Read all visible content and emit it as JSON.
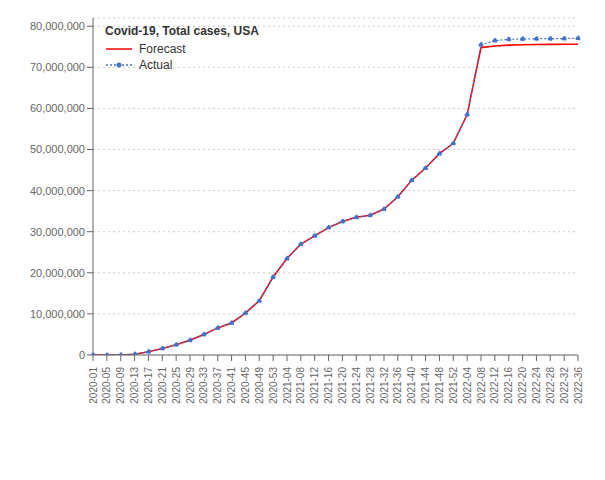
{
  "chart_data": {
    "type": "line",
    "title": "Covid-19, Total cases, USA",
    "categories": [
      "2020-01",
      "2020-05",
      "2020-09",
      "2020-13",
      "2020-17",
      "2020-21",
      "2020-25",
      "2020-29",
      "2020-33",
      "2020-37",
      "2020-41",
      "2020-45",
      "2020-49",
      "2020-53",
      "2021-04",
      "2021-08",
      "2021-12",
      "2021-16",
      "2021-20",
      "2021-24",
      "2021-28",
      "2021-32",
      "2021-36",
      "2021-40",
      "2021-44",
      "2021-48",
      "2021-52",
      "2022-04",
      "2022-08",
      "2022-12",
      "2022-16",
      "2022-20",
      "2022-24",
      "2022-28",
      "2022-32",
      "2022-36"
    ],
    "series": [
      {
        "name": "Forecast",
        "color": "#ff0000",
        "line_style": "solid",
        "values": [
          50,
          300,
          15000,
          200000,
          800000,
          1600000,
          2500000,
          3600000,
          5000000,
          6600000,
          7800000,
          10200000,
          13200000,
          19000000,
          23500000,
          27000000,
          29000000,
          31000000,
          32500000,
          33500000,
          34000000,
          35500000,
          38500000,
          42500000,
          45500000,
          49000000,
          51500000,
          58500000,
          74800000,
          75200000,
          75400000,
          75500000,
          75550000,
          75580000,
          75600000,
          75620000
        ]
      },
      {
        "name": "Actual",
        "color": "#4472c4",
        "line_style": "dotted",
        "marker": "circle",
        "values": [
          50,
          300,
          15000,
          200000,
          800000,
          1600000,
          2500000,
          3600000,
          5000000,
          6600000,
          7800000,
          10200000,
          13200000,
          19000000,
          23500000,
          27000000,
          29000000,
          31000000,
          32500000,
          33500000,
          34000000,
          35500000,
          38500000,
          42500000,
          45500000,
          49000000,
          51500000,
          58500000,
          75500000,
          76500000,
          76800000,
          76900000,
          76950000,
          76980000,
          77000000,
          77100000
        ]
      }
    ],
    "ylim": [
      0,
      82000000
    ],
    "yticks": [
      0,
      {
        "value": 10000000,
        "label": "10,000,000"
      },
      {
        "value": 20000000,
        "label": "20,000,000"
      },
      {
        "value": 30000000,
        "label": "30,000,000"
      },
      {
        "value": 40000000,
        "label": "40,000,000"
      },
      {
        "value": 50000000,
        "label": "50,000,000"
      },
      {
        "value": 60000000,
        "label": "60,000,000"
      },
      {
        "value": 70000000,
        "label": "70,000,000"
      },
      {
        "value": 80000000,
        "label": "80,000,000"
      }
    ],
    "grid": true,
    "legend": "upper left"
  }
}
